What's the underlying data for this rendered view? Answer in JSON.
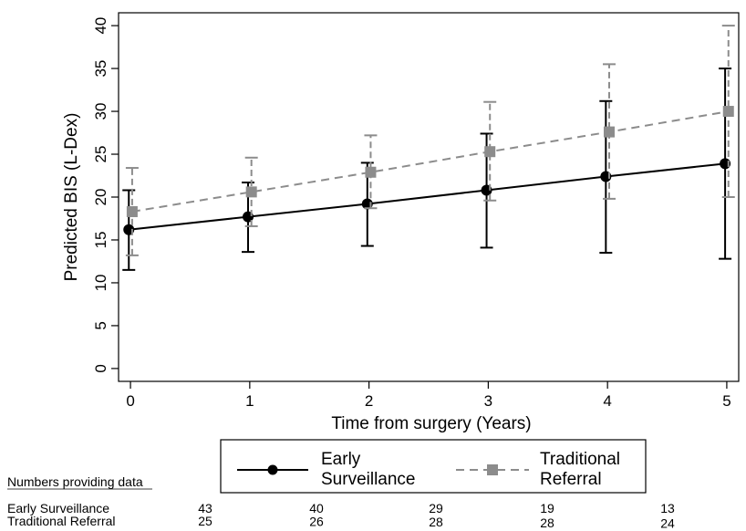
{
  "chart_data": {
    "type": "line",
    "xlabel": "Time from surgery (Years)",
    "ylabel": "Predicted BIS (L-Dex)",
    "x": [
      0,
      1,
      2,
      3,
      4,
      5
    ],
    "xlim": [
      -0.1,
      5.1
    ],
    "ylim": [
      -1.5,
      41.5
    ],
    "yticks": [
      0,
      5,
      10,
      15,
      20,
      25,
      30,
      35,
      40
    ],
    "grid": false,
    "legend_position": "bottom",
    "series": [
      {
        "name": "Early Surveillance",
        "legend_label": [
          "Early",
          "Surveillance"
        ],
        "color": "#000000",
        "line_style": "solid",
        "marker": "circle",
        "values": [
          16.2,
          17.7,
          19.2,
          20.8,
          22.4,
          23.9
        ],
        "ci_low": [
          11.5,
          13.6,
          14.3,
          14.1,
          13.5,
          12.8
        ],
        "ci_high": [
          20.8,
          21.7,
          24.0,
          27.4,
          31.2,
          35.0
        ]
      },
      {
        "name": "Traditional Referral",
        "legend_label": [
          "Traditional",
          "Referral"
        ],
        "color": "#8c8c8c",
        "line_style": "dashed",
        "marker": "square",
        "values": [
          18.3,
          20.6,
          22.9,
          25.3,
          27.6,
          30.0
        ],
        "ci_low": [
          13.2,
          16.6,
          18.7,
          19.6,
          19.8,
          20.0
        ],
        "ci_high": [
          23.4,
          24.6,
          27.2,
          31.1,
          35.5,
          40.0
        ]
      }
    ]
  },
  "numbers_table": {
    "title": "Numbers providing data",
    "rows": [
      {
        "label": "Early Surveillance",
        "values": [
          "43",
          "40",
          "29",
          "19",
          "13"
        ]
      },
      {
        "label": "Traditional Referral",
        "values": [
          "25",
          "26",
          "28",
          "28",
          "24"
        ]
      }
    ]
  }
}
